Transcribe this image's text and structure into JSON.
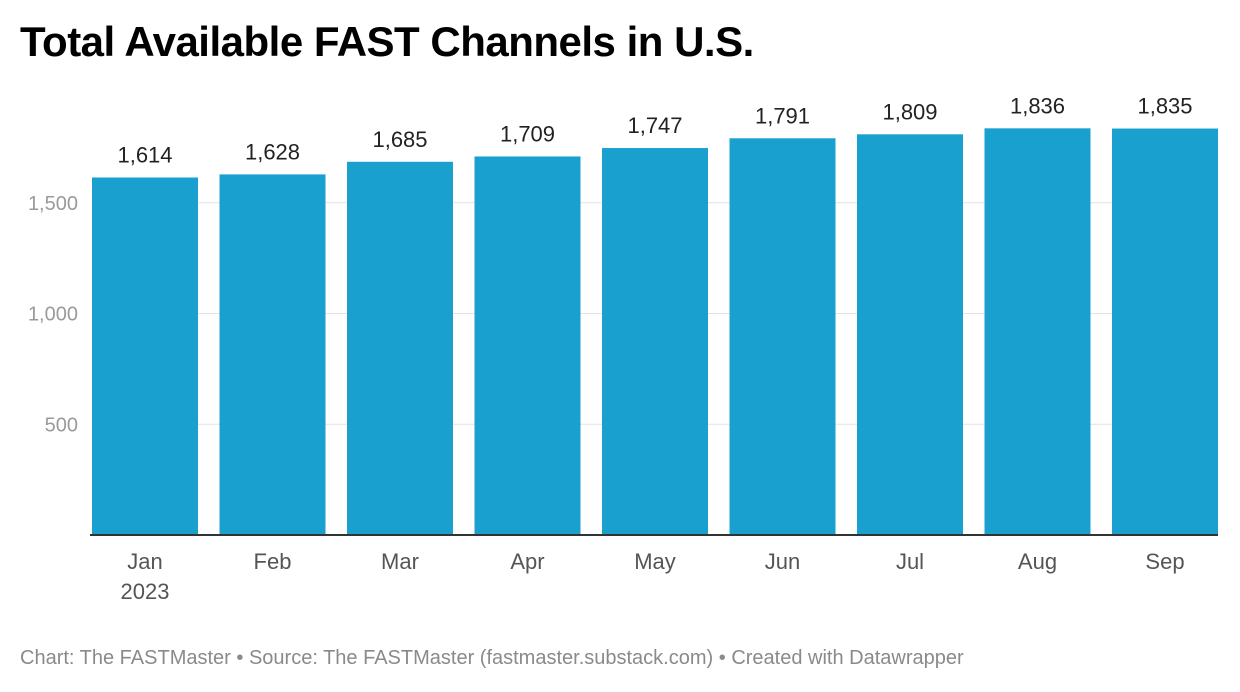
{
  "title": "Total Available FAST Channels in U.S.",
  "footer": {
    "chart_credit": "Chart: The FASTMaster",
    "separator": "•",
    "source": "Source: The FASTMaster (fastmaster.substack.com)",
    "tool_credit": "Created with Datawrapper"
  },
  "colors": {
    "bar": "#1aa0cf",
    "grid": "#e2e2e2",
    "axis": "#333333",
    "tick_label": "#9a9a9a",
    "category_label": "#555555",
    "value_label": "#222222"
  },
  "chart_data": {
    "type": "bar",
    "title": "Total Available FAST Channels in U.S.",
    "xlabel": "",
    "ylabel": "",
    "categories": [
      "Jan",
      "Feb",
      "Mar",
      "Apr",
      "May",
      "Jun",
      "Jul",
      "Aug",
      "Sep"
    ],
    "category_sublabels": [
      "2023",
      "",
      "",
      "",
      "",
      "",
      "",
      "",
      ""
    ],
    "values": [
      1614,
      1628,
      1685,
      1709,
      1747,
      1791,
      1809,
      1836,
      1835
    ],
    "value_labels": [
      "1,614",
      "1,628",
      "1,685",
      "1,709",
      "1,747",
      "1,791",
      "1,809",
      "1,836",
      "1,835"
    ],
    "yticks": [
      500,
      1000,
      1500
    ],
    "ytick_labels": [
      "500",
      "1,000",
      "1,500"
    ],
    "ylim": [
      0,
      2000
    ],
    "grid": true,
    "legend": "none"
  }
}
